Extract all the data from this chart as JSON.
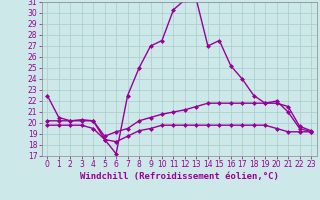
{
  "xlabel": "Windchill (Refroidissement éolien,°C)",
  "xlim": [
    -0.5,
    23.5
  ],
  "ylim": [
    17,
    31
  ],
  "yticks": [
    17,
    18,
    19,
    20,
    21,
    22,
    23,
    24,
    25,
    26,
    27,
    28,
    29,
    30,
    31
  ],
  "xticks": [
    0,
    1,
    2,
    3,
    4,
    5,
    6,
    7,
    8,
    9,
    10,
    11,
    12,
    13,
    14,
    15,
    16,
    17,
    18,
    19,
    20,
    21,
    22,
    23
  ],
  "background_color": "#cce8e8",
  "grid_color": "#aacccc",
  "line_color": "#990099",
  "hours": [
    0,
    1,
    2,
    3,
    4,
    5,
    6,
    7,
    8,
    9,
    10,
    11,
    12,
    13,
    14,
    15,
    16,
    17,
    18,
    19,
    20,
    21,
    22,
    23
  ],
  "line1": [
    22.5,
    20.5,
    20.2,
    20.3,
    20.2,
    18.5,
    17.2,
    22.5,
    25.0,
    27.0,
    27.5,
    30.3,
    31.2,
    31.2,
    27.0,
    27.5,
    25.2,
    24.0,
    22.5,
    21.8,
    22.0,
    21.0,
    19.5,
    19.2
  ],
  "line2": [
    20.2,
    20.2,
    20.2,
    20.2,
    20.2,
    18.8,
    19.2,
    19.5,
    20.2,
    20.5,
    20.8,
    21.0,
    21.2,
    21.5,
    21.8,
    21.8,
    21.8,
    21.8,
    21.8,
    21.8,
    21.8,
    21.5,
    19.7,
    19.3
  ],
  "line3": [
    19.8,
    19.8,
    19.8,
    19.8,
    19.5,
    18.5,
    18.3,
    18.8,
    19.3,
    19.5,
    19.8,
    19.8,
    19.8,
    19.8,
    19.8,
    19.8,
    19.8,
    19.8,
    19.8,
    19.8,
    19.5,
    19.2,
    19.2,
    19.2
  ],
  "marker": "D",
  "markersize": 2.5,
  "linewidth": 1.0,
  "tick_fontsize": 5.5,
  "xlabel_fontsize": 6.5
}
